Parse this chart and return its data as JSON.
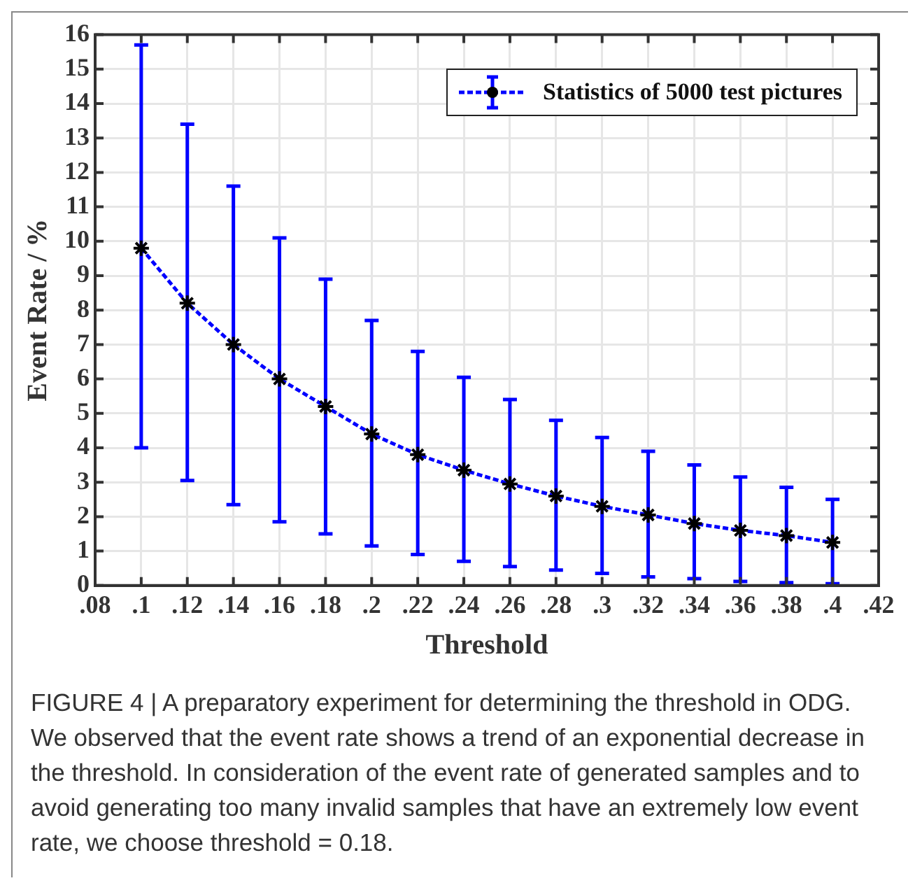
{
  "chart_data": {
    "type": "line",
    "xlabel": "Threshold",
    "ylabel": "Event Rate / %",
    "x": [
      0.1,
      0.12,
      0.14,
      0.16,
      0.18,
      0.2,
      0.22,
      0.24,
      0.26,
      0.28,
      0.3,
      0.32,
      0.34,
      0.36,
      0.38,
      0.4
    ],
    "series": [
      {
        "name": "Statistics of 5000 test pictures",
        "color": "#0000ff",
        "values": [
          9.8,
          8.2,
          7.0,
          6.0,
          5.2,
          4.4,
          3.8,
          3.35,
          2.95,
          2.6,
          2.3,
          2.05,
          1.8,
          1.6,
          1.45,
          1.25
        ],
        "errors": [
          [
            4.0,
            15.7
          ],
          [
            3.05,
            13.4
          ],
          [
            2.35,
            11.6
          ],
          [
            1.85,
            10.1
          ],
          [
            1.5,
            8.9
          ],
          [
            1.15,
            7.7
          ],
          [
            0.9,
            6.8
          ],
          [
            0.7,
            6.05
          ],
          [
            0.55,
            5.4
          ],
          [
            0.45,
            4.8
          ],
          [
            0.35,
            4.3
          ],
          [
            0.25,
            3.9
          ],
          [
            0.2,
            3.5
          ],
          [
            0.12,
            3.15
          ],
          [
            0.08,
            2.85
          ],
          [
            0.05,
            2.5
          ]
        ]
      }
    ],
    "xlim": [
      0.08,
      0.42
    ],
    "xticks": [
      {
        "value": 0.08,
        "label": ".08"
      },
      {
        "value": 0.1,
        "label": ".1"
      },
      {
        "value": 0.12,
        "label": ".12"
      },
      {
        "value": 0.14,
        "label": ".14"
      },
      {
        "value": 0.16,
        "label": ".16"
      },
      {
        "value": 0.18,
        "label": ".18"
      },
      {
        "value": 0.2,
        "label": ".2"
      },
      {
        "value": 0.22,
        "label": ".22"
      },
      {
        "value": 0.24,
        "label": ".24"
      },
      {
        "value": 0.26,
        "label": ".26"
      },
      {
        "value": 0.28,
        "label": ".28"
      },
      {
        "value": 0.3,
        "label": ".3"
      },
      {
        "value": 0.32,
        "label": ".32"
      },
      {
        "value": 0.34,
        "label": ".34"
      },
      {
        "value": 0.36,
        "label": ".36"
      },
      {
        "value": 0.38,
        "label": ".38"
      },
      {
        "value": 0.4,
        "label": ".4"
      },
      {
        "value": 0.42,
        "label": ".42"
      }
    ],
    "ylim": [
      0,
      16
    ],
    "yticks": [
      0,
      1,
      2,
      3,
      4,
      5,
      6,
      7,
      8,
      9,
      10,
      11,
      12,
      13,
      14,
      15,
      16
    ],
    "grid": true,
    "legend": "top right",
    "marker": "cross",
    "line_style": "dashed",
    "annotations": [
      "FIGURE 4 | A preparatory experiment for determining the threshold in ODG. We observed that the event rate shows a trend of an exponential decrease in the threshold. In consideration of the event rate of generated samples and to avoid generating too many invalid samples that have an extremely low event rate, we choose threshold = 0.18."
    ]
  }
}
